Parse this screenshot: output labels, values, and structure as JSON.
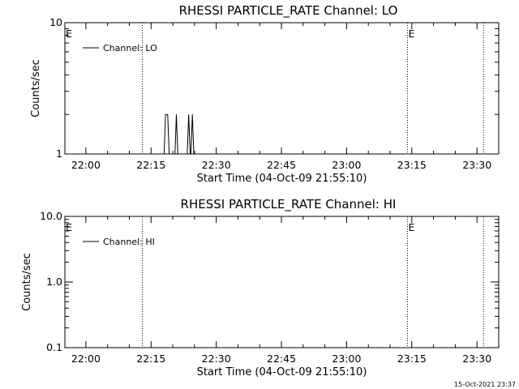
{
  "chart_data": [
    {
      "type": "line",
      "title": "RHESSI PARTICLE_RATE Channel: LO",
      "xlabel": "Start Time (04-Oct-09 21:55:10)",
      "ylabel": "Counts/sec",
      "yscale": "log",
      "ylim": [
        1,
        10
      ],
      "yticks": [
        {
          "value": 1,
          "label": "1"
        },
        {
          "value": 10,
          "label": "10"
        }
      ],
      "xlim": [
        "21:55:10",
        "23:35:00"
      ],
      "xticks": [
        "22:00",
        "22:15",
        "22:30",
        "22:45",
        "23:00",
        "23:15",
        "23:30"
      ],
      "legend": {
        "label": "Channel: LO",
        "placement": "top-left"
      },
      "event_markers": [
        {
          "time": "21:55:10",
          "label": "E"
        },
        {
          "time": "23:14:00",
          "label": "E"
        }
      ],
      "dotted_lines": [
        "22:13:00",
        "23:14:00",
        "23:31:30"
      ],
      "series": [
        {
          "name": "Channel: LO",
          "points": [
            {
              "t": "22:18:00",
              "y": 1
            },
            {
              "t": "22:18:20",
              "y": 2
            },
            {
              "t": "22:18:50",
              "y": 2
            },
            {
              "t": "22:19:10",
              "y": 1
            },
            {
              "t": "22:20:30",
              "y": 1
            },
            {
              "t": "22:20:50",
              "y": 2
            },
            {
              "t": "22:21:10",
              "y": 1
            },
            {
              "t": "22:23:20",
              "y": 1
            },
            {
              "t": "22:23:40",
              "y": 2
            },
            {
              "t": "22:24:00",
              "y": 1
            },
            {
              "t": "22:24:10",
              "y": 1
            },
            {
              "t": "22:24:30",
              "y": 2
            },
            {
              "t": "22:24:50",
              "y": 1
            }
          ]
        }
      ]
    },
    {
      "type": "line",
      "title": "RHESSI PARTICLE_RATE Channel: HI",
      "xlabel": "Start Time (04-Oct-09 21:55:10)",
      "ylabel": "Counts/sec",
      "yscale": "log",
      "ylim": [
        0.1,
        10
      ],
      "yticks": [
        {
          "value": 0.1,
          "label": "0.1"
        },
        {
          "value": 1,
          "label": "1.0"
        },
        {
          "value": 10,
          "label": "10.0"
        }
      ],
      "xlim": [
        "21:55:10",
        "23:35:00"
      ],
      "xticks": [
        "22:00",
        "22:15",
        "22:30",
        "22:45",
        "23:00",
        "23:15",
        "23:30"
      ],
      "legend": {
        "label": "Channel: HI",
        "placement": "top-left"
      },
      "event_markers": [
        {
          "time": "21:55:10",
          "label": "E"
        },
        {
          "time": "23:14:00",
          "label": "E"
        }
      ],
      "dotted_lines": [
        "22:13:00",
        "23:14:00",
        "23:31:30"
      ],
      "series": [
        {
          "name": "Channel: HI",
          "points": []
        }
      ]
    }
  ],
  "footer": {
    "timestamp": "15-Oct-2021 23:37"
  }
}
